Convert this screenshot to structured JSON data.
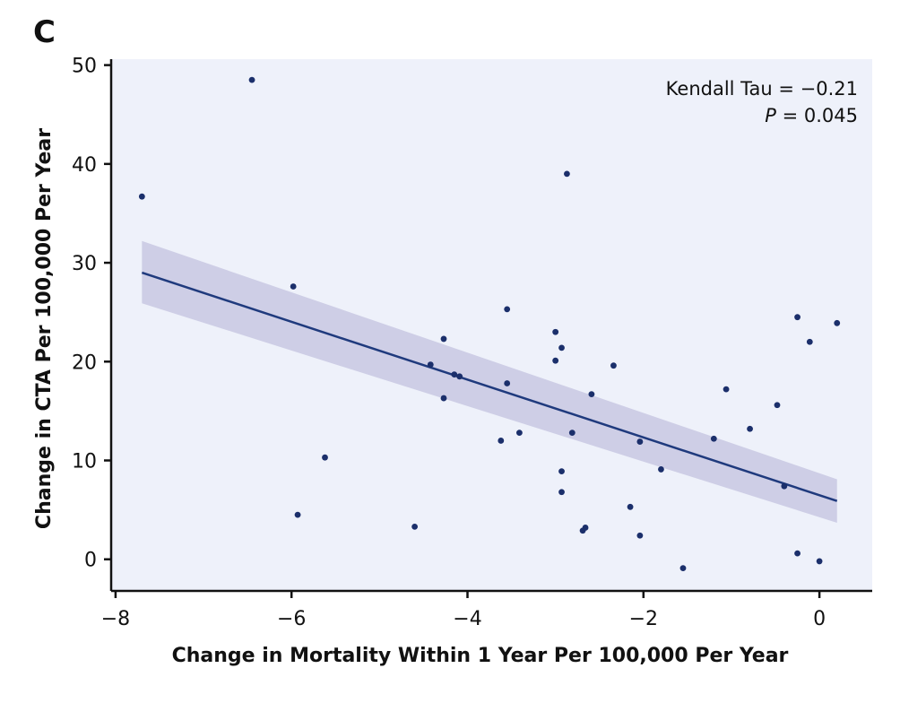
{
  "figure": {
    "panel_letter": "C",
    "top_fragment": "....... ...)"
  },
  "colors": {
    "plot_background": "#eef1fa",
    "point": "#1b2f6b",
    "line": "#1f3a7d",
    "band": "#c8c8e2",
    "axis": "#111111"
  },
  "chart_data": {
    "type": "scatter",
    "xlabel": "Change in Mortality Within 1 Year Per 100,000 Per Year",
    "ylabel": "Change in CTA Per 100,000 Per Year",
    "xlim": [
      -8.05,
      0.6
    ],
    "ylim": [
      -3.2,
      50.6
    ],
    "xticks": [
      -8,
      -6,
      -4,
      -2,
      0
    ],
    "xtick_labels": [
      "−8",
      "−6",
      "−4",
      "−2",
      "0"
    ],
    "yticks": [
      0,
      10,
      20,
      30,
      40,
      50
    ],
    "ytick_labels": [
      "0",
      "10",
      "20",
      "30",
      "40",
      "50"
    ],
    "grid": false,
    "annotation": {
      "line1": "Kendall Tau = −0.21",
      "line2_italic": "P",
      "line2_rest": " = 0.045"
    },
    "points": [
      {
        "x": -7.7,
        "y": 36.7
      },
      {
        "x": -6.45,
        "y": 48.5
      },
      {
        "x": -5.98,
        "y": 27.6
      },
      {
        "x": -5.93,
        "y": 4.5
      },
      {
        "x": -5.62,
        "y": 10.3
      },
      {
        "x": -4.6,
        "y": 3.3
      },
      {
        "x": -4.42,
        "y": 19.7
      },
      {
        "x": -4.27,
        "y": 22.3
      },
      {
        "x": -4.27,
        "y": 16.3
      },
      {
        "x": -4.15,
        "y": 18.7
      },
      {
        "x": -4.09,
        "y": 18.5
      },
      {
        "x": -3.62,
        "y": 12.0
      },
      {
        "x": -3.55,
        "y": 25.3
      },
      {
        "x": -3.55,
        "y": 17.8
      },
      {
        "x": -3.41,
        "y": 12.8
      },
      {
        "x": -3.0,
        "y": 23.0
      },
      {
        "x": -3.0,
        "y": 20.1
      },
      {
        "x": -2.93,
        "y": 21.4
      },
      {
        "x": -2.93,
        "y": 8.9
      },
      {
        "x": -2.93,
        "y": 6.8
      },
      {
        "x": -2.87,
        "y": 39.0
      },
      {
        "x": -2.81,
        "y": 12.8
      },
      {
        "x": -2.69,
        "y": 2.9
      },
      {
        "x": -2.66,
        "y": 3.2
      },
      {
        "x": -2.59,
        "y": 16.7
      },
      {
        "x": -2.34,
        "y": 19.6
      },
      {
        "x": -2.15,
        "y": 5.3
      },
      {
        "x": -2.04,
        "y": 11.9
      },
      {
        "x": -2.04,
        "y": 2.4
      },
      {
        "x": -1.8,
        "y": 9.1
      },
      {
        "x": -1.55,
        "y": -0.9
      },
      {
        "x": -1.2,
        "y": 12.2
      },
      {
        "x": -1.06,
        "y": 17.2
      },
      {
        "x": -0.79,
        "y": 13.2
      },
      {
        "x": -0.48,
        "y": 15.6
      },
      {
        "x": -0.4,
        "y": 7.4
      },
      {
        "x": -0.25,
        "y": 24.5
      },
      {
        "x": -0.25,
        "y": 0.6
      },
      {
        "x": -0.11,
        "y": 22.0
      },
      {
        "x": 0.0,
        "y": -0.2
      },
      {
        "x": 0.2,
        "y": 23.9
      }
    ],
    "regression": {
      "x": [
        -7.7,
        0.2
      ],
      "y": [
        29.0,
        5.9
      ]
    },
    "confidence_band": {
      "x": [
        -7.7,
        0.2
      ],
      "upper": [
        32.2,
        8.1
      ],
      "lower": [
        25.9,
        3.7
      ]
    }
  }
}
